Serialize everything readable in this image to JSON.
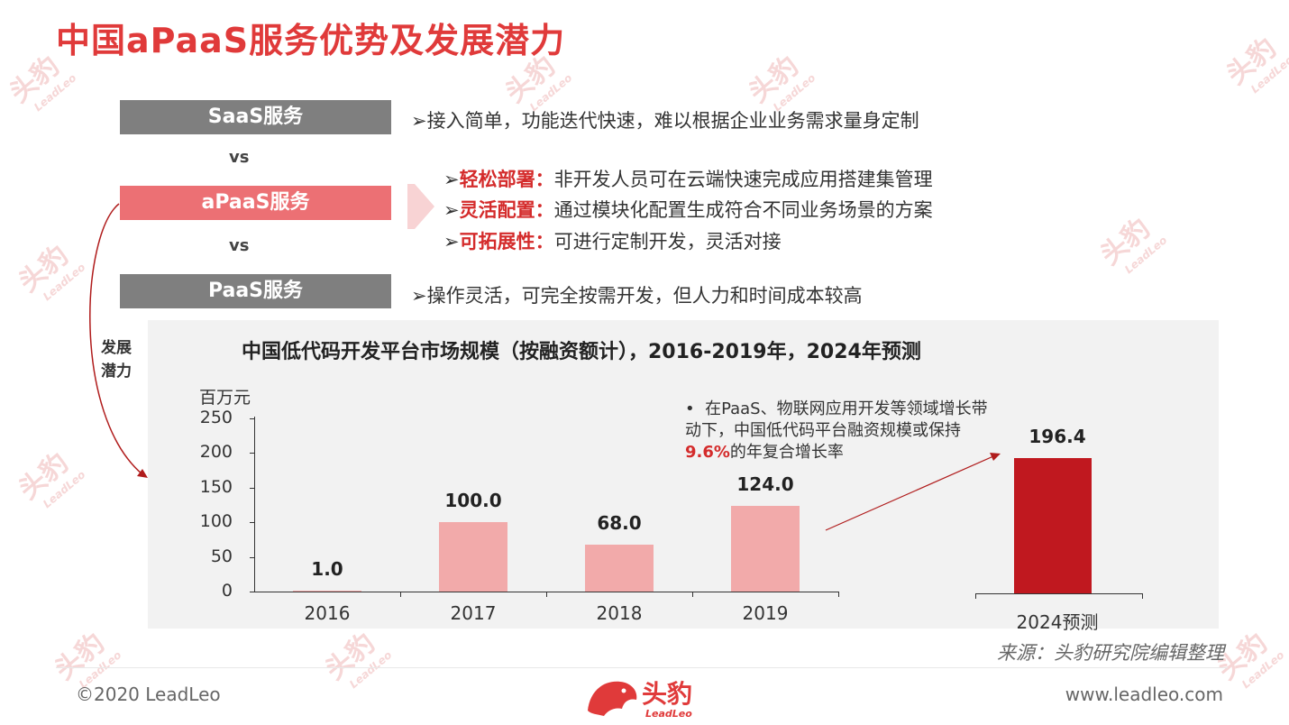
{
  "title": "中国aPaaS服务优势及发展潜力",
  "watermark": {
    "cn": "头豹",
    "en": "LeadLeo"
  },
  "services": {
    "saas": {
      "label": "SaaS服务",
      "desc": "➢接入简单，功能迭代快速，难以根据企业业务需求量身定制"
    },
    "vs1": "vs",
    "apaas": {
      "label": "aPaaS服务",
      "points": [
        {
          "key": "轻松部署：",
          "text": "非开发人员可在云端快速完成应用搭建集管理"
        },
        {
          "key": "灵活配置：",
          "text": "通过模块化配置生成符合不同业务场景的方案"
        },
        {
          "key": "可拓展性：",
          "text": "可进行定制开发，灵活对接"
        }
      ]
    },
    "vs2": "vs",
    "paas": {
      "label": "PaaS服务",
      "desc": "➢操作灵活，可完全按需开发，但人力和时间成本较高"
    }
  },
  "potential_label_1": "发展",
  "potential_label_2": "潜力",
  "bullet_mark": "➢",
  "note": {
    "bullet": "•",
    "text_before": "在PaaS、物联网应用开发等领域增长带动下，中国低代码平台融资规模或保持",
    "highlight": "9.6%",
    "text_after": "的年复合增长率"
  },
  "chart_data": {
    "type": "bar",
    "title": "中国低代码开发平台市场规模（按融资额计），2016-2019年，2024年预测",
    "ylabel": "百万元",
    "ylim": [
      0,
      250
    ],
    "yticks": [
      "250",
      "200",
      "150",
      "100",
      "50",
      "0"
    ],
    "categories": [
      "2016",
      "2017",
      "2018",
      "2019",
      "2024预测"
    ],
    "values": [
      1.0,
      100.0,
      68.0,
      124.0,
      196.4
    ],
    "value_labels": [
      "1.0",
      "100.0",
      "68.0",
      "124.0",
      "196.4"
    ],
    "colors": {
      "historical": "#f2aaaa",
      "forecast": "#c0181f"
    }
  },
  "source": "来源：头豹研究院编辑整理",
  "footer": {
    "copyright": "©2020 LeadLeo",
    "url": "www.leadleo.com",
    "logo_cn": "头豹",
    "logo_en": "LeadLeo"
  }
}
